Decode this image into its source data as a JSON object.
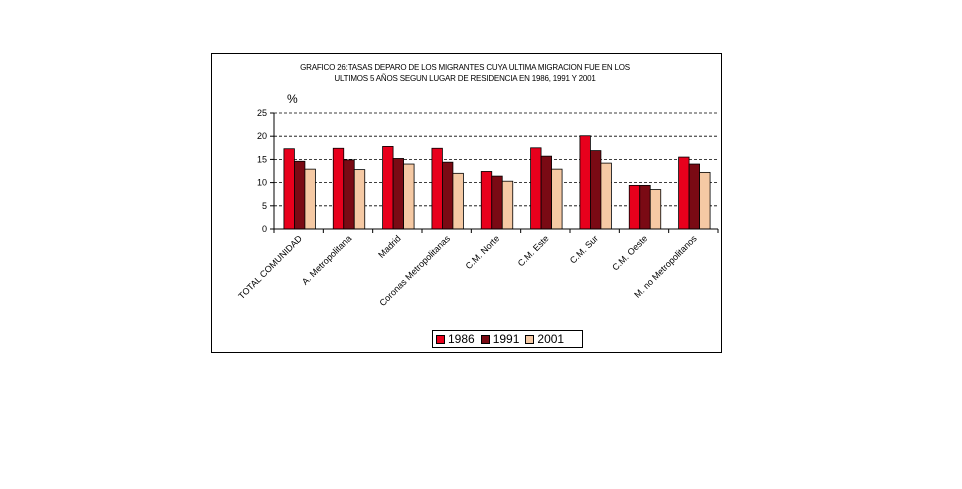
{
  "chart_data": {
    "type": "bar",
    "title_lines": [
      "GRAFICO 26:TASAS DEPARO DE LOS MIGRANTES CUYA ULTIMA MIGRACION FUE EN LOS",
      "ULTIMOS 5 AÑOS SEGUN LUGAR DE RESIDENCIA EN 1986, 1991 Y 2001"
    ],
    "ylabel": "%",
    "ylim": [
      0,
      25
    ],
    "yticks": [
      0,
      5,
      10,
      15,
      20,
      25
    ],
    "grid": "horizontal dashed",
    "legend_position": "bottom",
    "categories": [
      "TOTAL COMUNIDAD",
      "A. Metropolitana",
      "Madrid",
      "Coronas Metropolitanas",
      "C.M. Norte",
      "C.M. Este",
      "C.M. Sur",
      "C.M. Oeste",
      "M. no Metropolitanos"
    ],
    "series": [
      {
        "name": "1986",
        "color": "#e8001c",
        "values": [
          17.3,
          17.4,
          17.8,
          17.4,
          12.4,
          17.5,
          20.1,
          9.4,
          15.5
        ]
      },
      {
        "name": "1991",
        "color": "#7a0a14",
        "values": [
          14.6,
          14.9,
          15.2,
          14.4,
          11.4,
          15.7,
          16.9,
          9.4,
          14.0
        ]
      },
      {
        "name": "2001",
        "color": "#f5c9a4",
        "values": [
          12.9,
          12.8,
          14.0,
          12.0,
          10.3,
          12.9,
          14.2,
          8.5,
          12.2
        ]
      }
    ]
  }
}
